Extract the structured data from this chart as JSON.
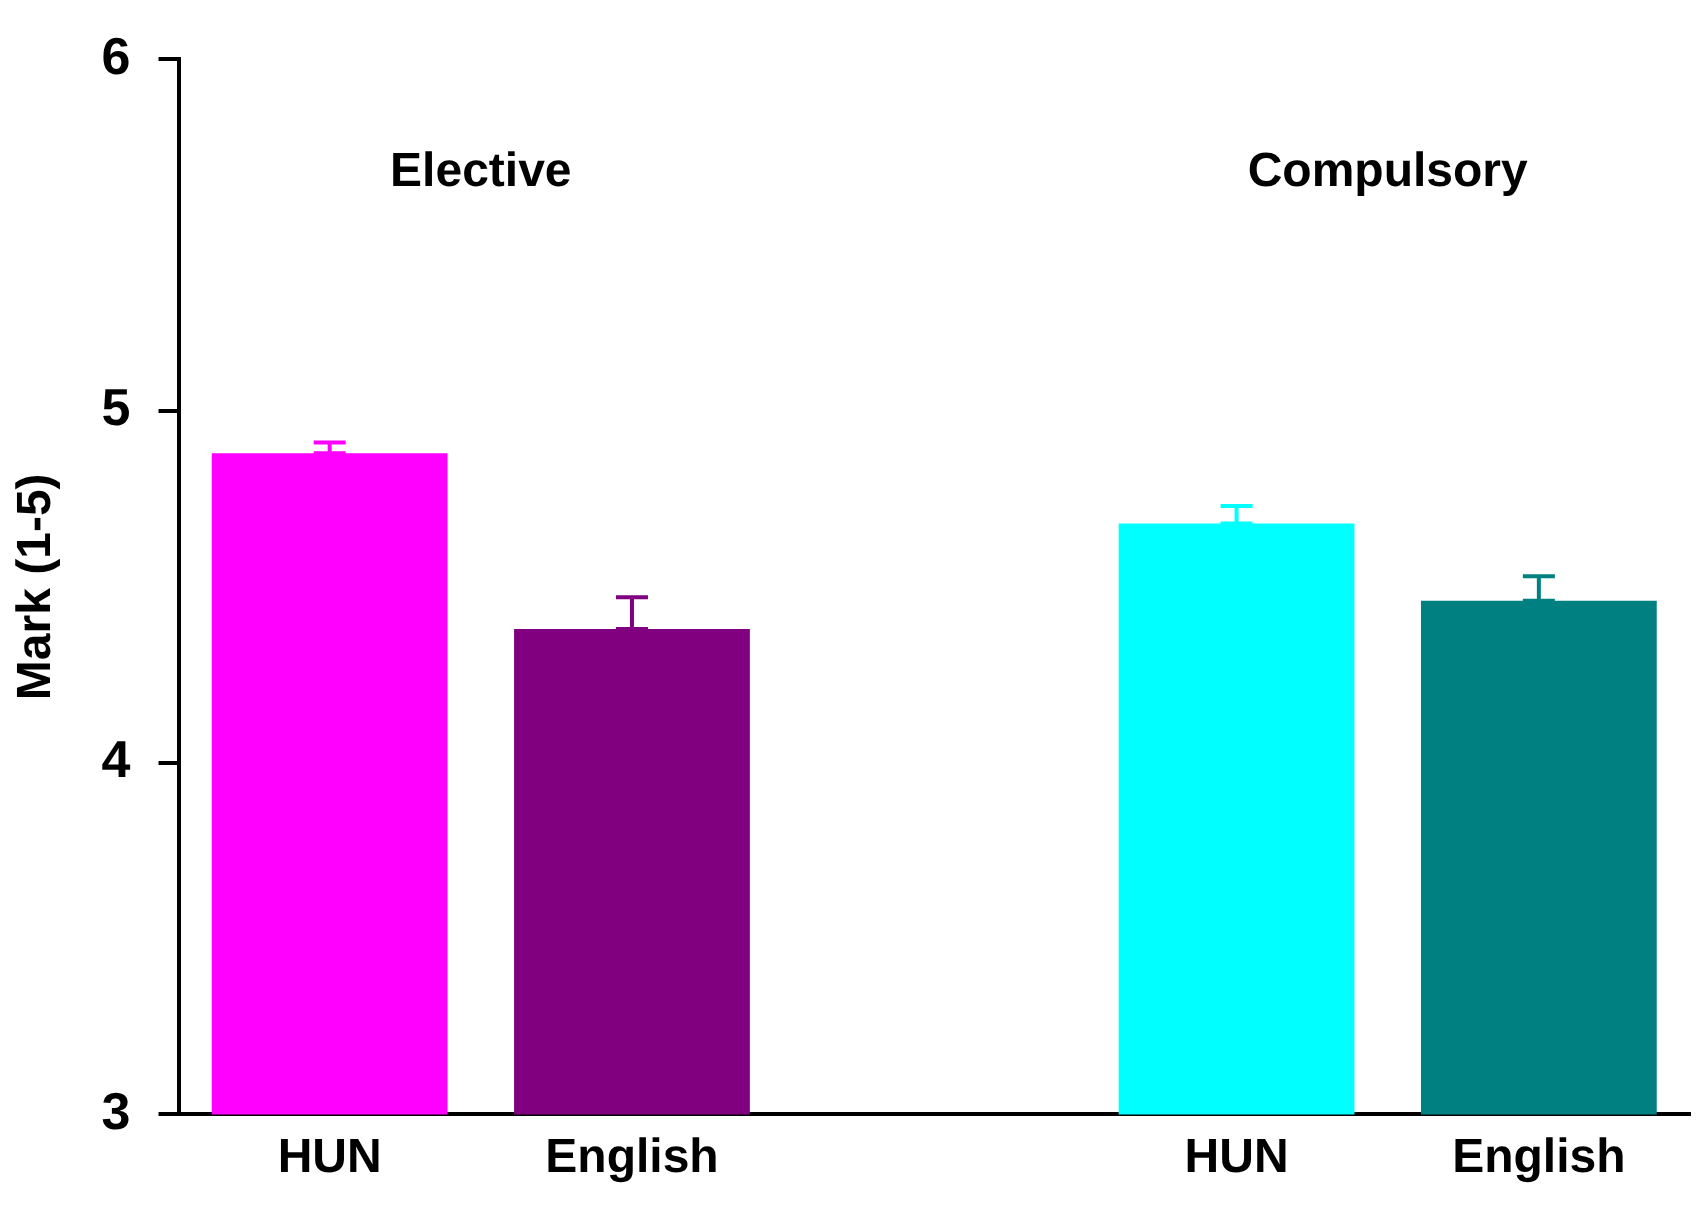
{
  "chart_data": {
    "type": "bar",
    "ylabel": "Mark (1-5)",
    "categories": [
      "HUN",
      "English",
      null,
      "HUN",
      "English"
    ],
    "values": [
      4.88,
      4.38,
      null,
      4.68,
      4.46
    ],
    "colors": [
      "#ff00ff",
      "#800080",
      "#ffffff",
      "#00ffff",
      "#008080"
    ],
    "errors": [
      [
        4.88,
        4.91
      ],
      [
        4.38,
        4.47
      ],
      null,
      [
        4.68,
        4.73
      ],
      [
        4.46,
        4.53
      ]
    ],
    "ylim": [
      3,
      6
    ],
    "yticks": [
      3,
      4,
      5,
      6
    ],
    "grid": false,
    "legend": false,
    "annotations": [
      "Elective",
      "Compulsory"
    ]
  }
}
